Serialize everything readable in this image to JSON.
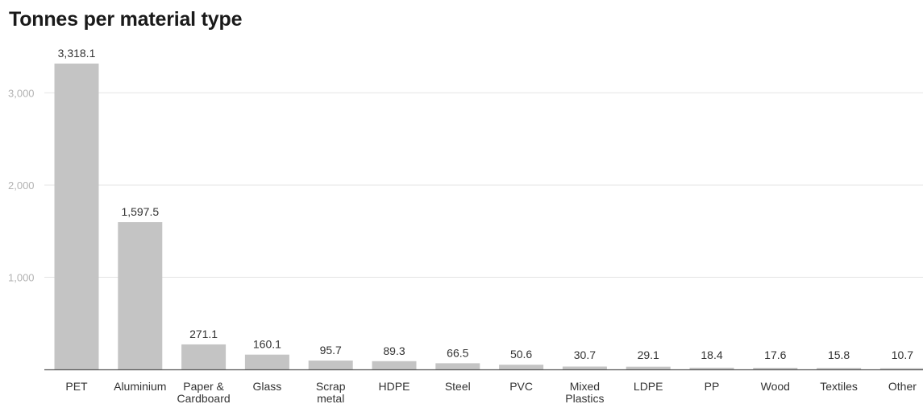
{
  "chart_data": {
    "type": "bar",
    "title": "Tonnes per material type",
    "xlabel": "",
    "ylabel": "",
    "ylim": [
      0,
      3318.1
    ],
    "yticks": [
      1000,
      2000,
      3000
    ],
    "ytick_labels": [
      "1,000",
      "2,000",
      "3,000"
    ],
    "grid": true,
    "categories": [
      [
        "PET"
      ],
      [
        "Aluminium"
      ],
      [
        "Paper &",
        "Cardboard"
      ],
      [
        "Glass"
      ],
      [
        "Scrap",
        "metal"
      ],
      [
        "HDPE"
      ],
      [
        "Steel"
      ],
      [
        "PVC"
      ],
      [
        "Mixed",
        "Plastics"
      ],
      [
        "LDPE"
      ],
      [
        "PP"
      ],
      [
        "Wood"
      ],
      [
        "Textiles"
      ],
      [
        "Other"
      ]
    ],
    "values": [
      3318.1,
      1597.5,
      271.1,
      160.1,
      95.7,
      89.3,
      66.5,
      50.6,
      30.7,
      29.1,
      18.4,
      17.6,
      15.8,
      10.7
    ],
    "value_labels": [
      "3,318.1",
      "1,597.5",
      "271.1",
      "160.1",
      "95.7",
      "89.3",
      "66.5",
      "50.6",
      "30.7",
      "29.1",
      "18.4",
      "17.6",
      "15.8",
      "10.7"
    ],
    "colors": {
      "bar": "#c4c4c4",
      "grid": "#e4e4e4",
      "axis": "#555555",
      "tick_text": "#b3b3b3",
      "label_text": "#333333"
    }
  }
}
